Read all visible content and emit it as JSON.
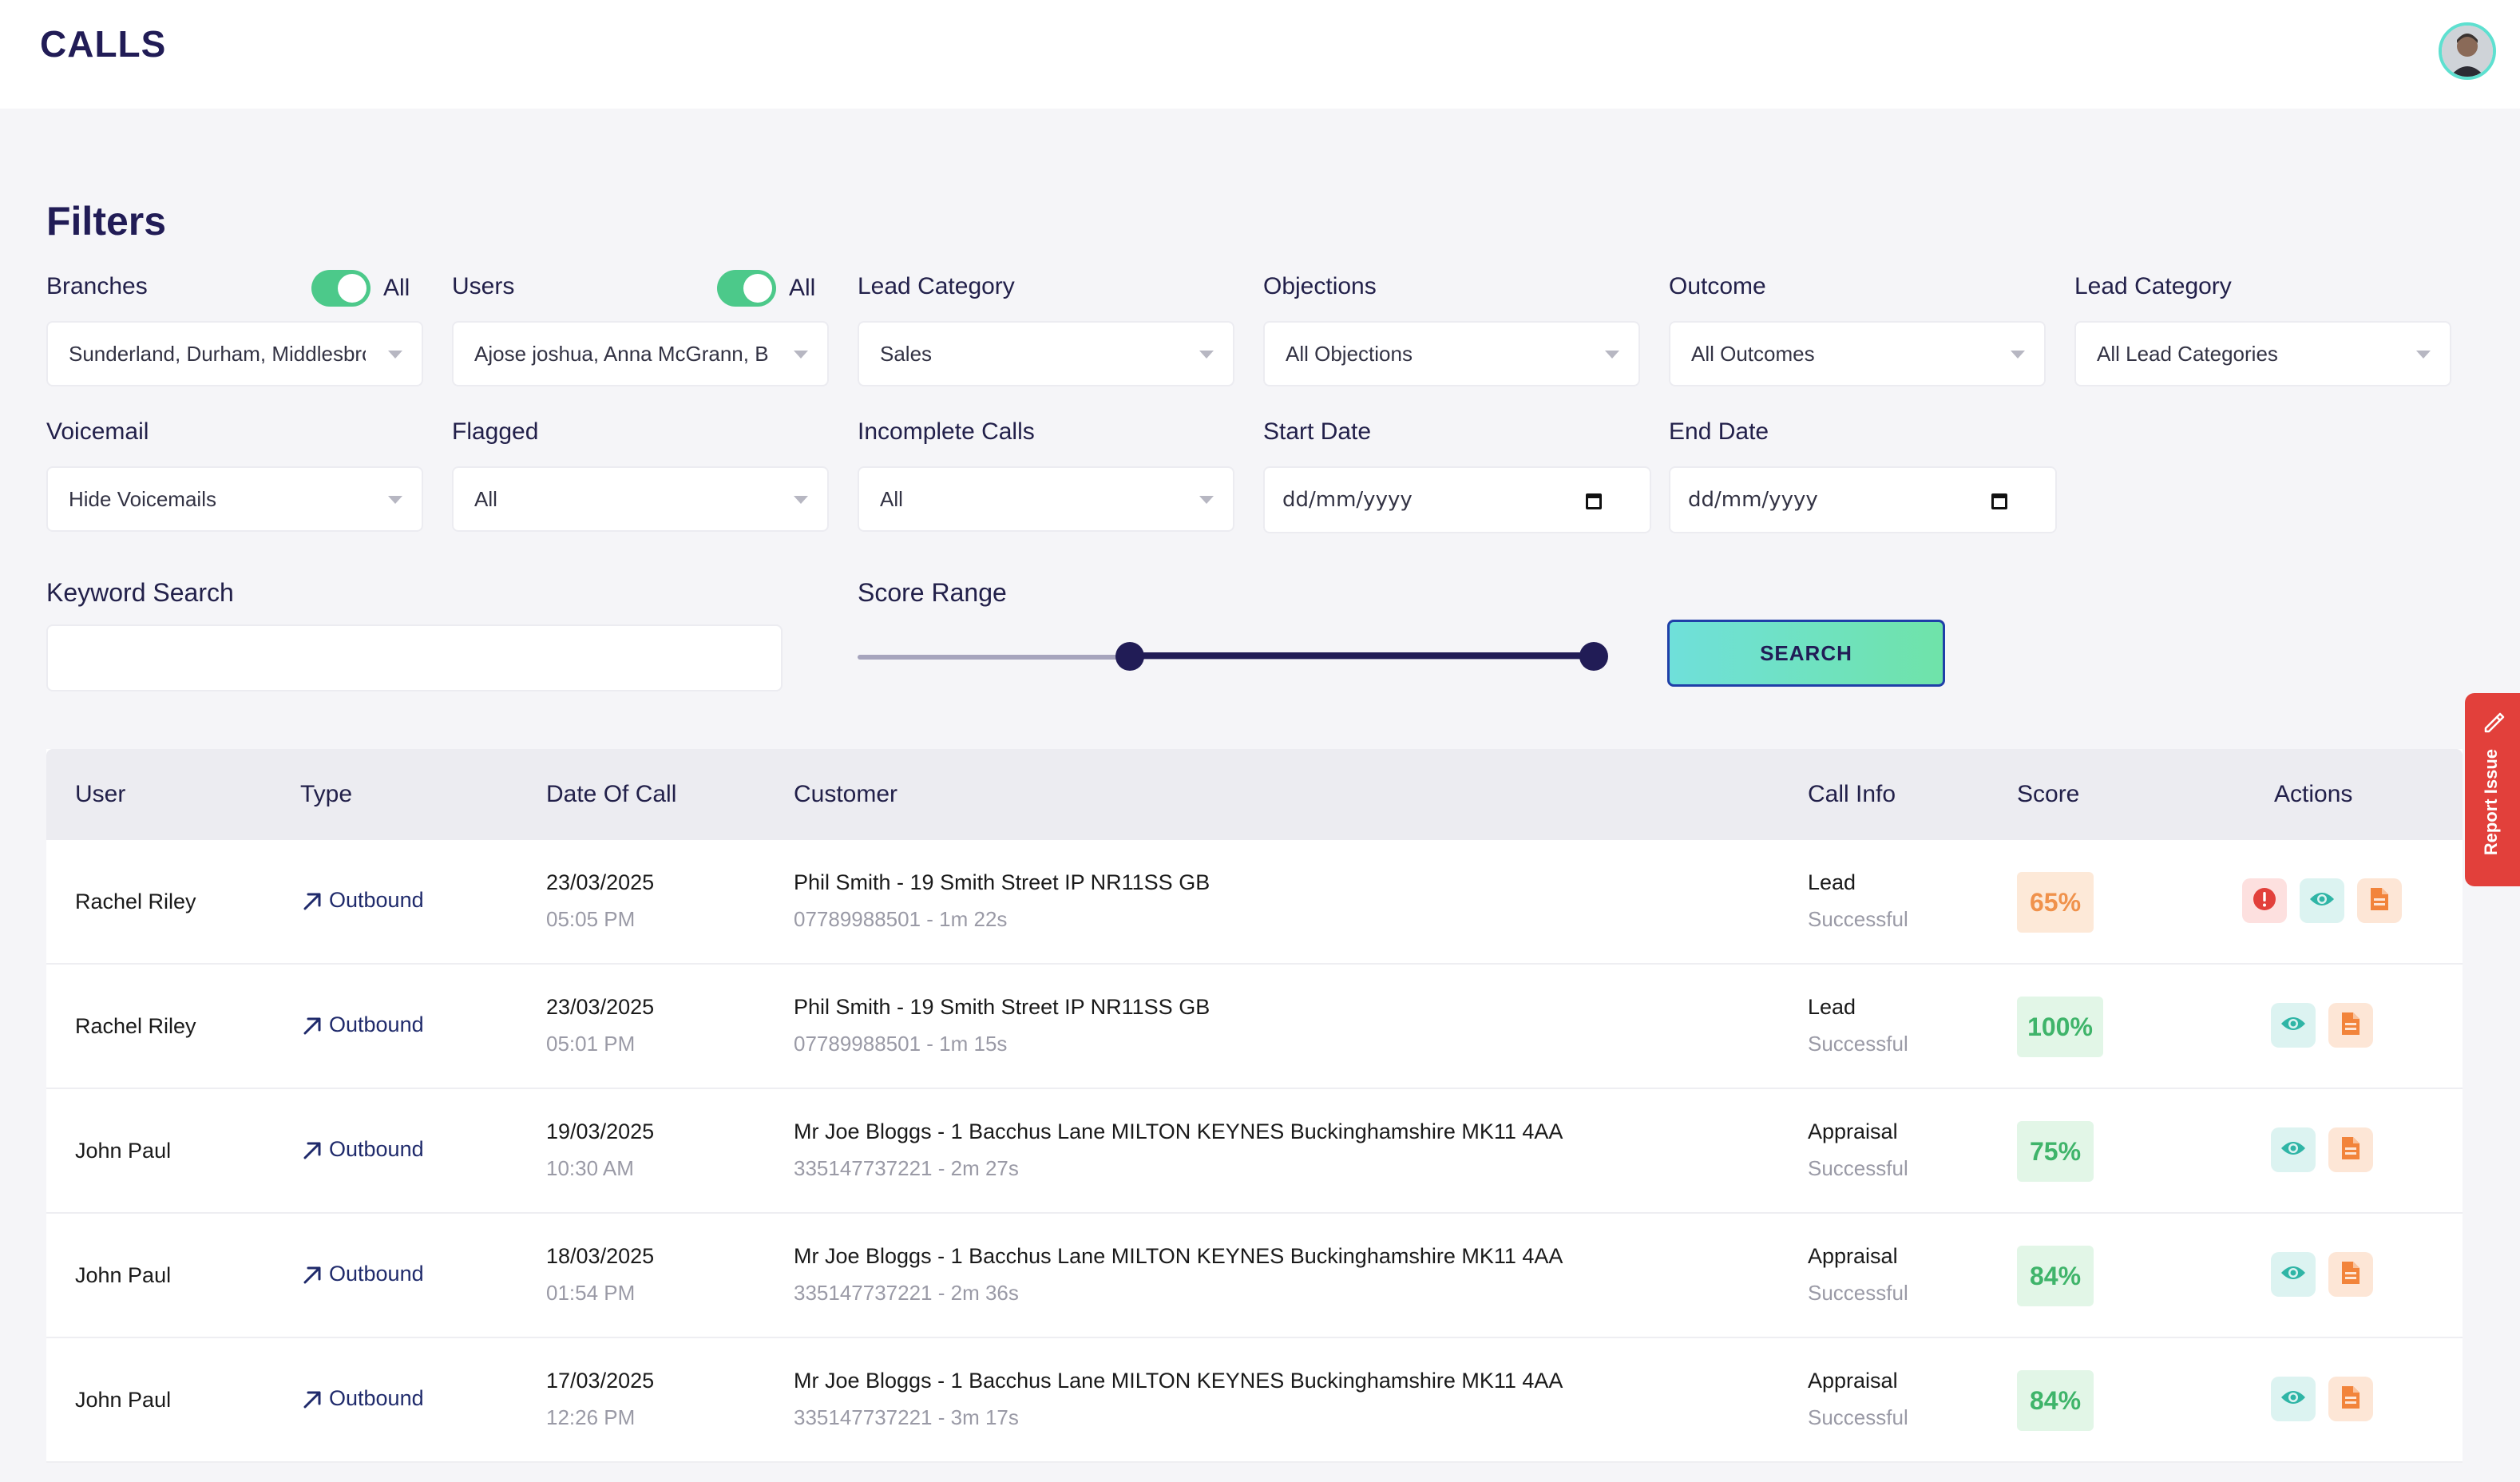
{
  "header": {
    "title": "CALLS"
  },
  "filters": {
    "title": "Filters",
    "branches": {
      "label": "Branches",
      "toggle_label": "All",
      "value": "Sunderland, Durham, Middlesbrough"
    },
    "users": {
      "label": "Users",
      "toggle_label": "All",
      "value": "Ajose joshua, Anna McGrann, B"
    },
    "lead_category_1": {
      "label": "Lead Category",
      "value": "Sales"
    },
    "objections": {
      "label": "Objections",
      "value": "All Objections"
    },
    "outcome": {
      "label": "Outcome",
      "value": "All Outcomes"
    },
    "lead_category_2": {
      "label": "Lead Category",
      "value": "All Lead Categories"
    },
    "voicemail": {
      "label": "Voicemail",
      "value": "Hide Voicemails"
    },
    "flagged": {
      "label": "Flagged",
      "value": "All"
    },
    "incomplete_calls": {
      "label": "Incomplete Calls",
      "value": "All"
    },
    "start_date": {
      "label": "Start Date",
      "placeholder": "dd/mm/yyyy"
    },
    "end_date": {
      "label": "End Date",
      "placeholder": "dd/mm/yyyy"
    },
    "keyword_search": {
      "label": "Keyword Search",
      "value": ""
    },
    "score_range": {
      "label": "Score Range",
      "min_fraction": 0.37,
      "max_fraction": 1.0
    },
    "search_button": "SEARCH"
  },
  "report_issue": "Report Issue",
  "table": {
    "headers": {
      "user": "User",
      "type": "Type",
      "date": "Date Of Call",
      "customer": "Customer",
      "call_info": "Call Info",
      "score": "Score",
      "actions": "Actions"
    },
    "rows": [
      {
        "user": "Rachel Riley",
        "type": "Outbound",
        "date": "23/03/2025",
        "time": "05:05 PM",
        "customer": "Phil Smith - 19 Smith Street IP NR11SS GB",
        "customer_sub": "07789988501 - 1m 22s",
        "call_info": "Lead",
        "call_status": "Successful",
        "score": "65%",
        "score_color": "#f0924c",
        "score_bg": "#fde9d8",
        "flagged": true
      },
      {
        "user": "Rachel Riley",
        "type": "Outbound",
        "date": "23/03/2025",
        "time": "05:01 PM",
        "customer": "Phil Smith - 19 Smith Street IP NR11SS GB",
        "customer_sub": "07789988501 - 1m 15s",
        "call_info": "Lead",
        "call_status": "Successful",
        "score": "100%",
        "score_color": "#3fb46a",
        "score_bg": "#e2f6e7",
        "flagged": false
      },
      {
        "user": "John Paul",
        "type": "Outbound",
        "date": "19/03/2025",
        "time": "10:30 AM",
        "customer": "Mr Joe Bloggs - 1 Bacchus Lane MILTON KEYNES Buckinghamshire MK11 4AA",
        "customer_sub": "335147737221 - 2m 27s",
        "call_info": "Appraisal",
        "call_status": "Successful",
        "score": "75%",
        "score_color": "#3fb46a",
        "score_bg": "#e2f6e7",
        "flagged": false
      },
      {
        "user": "John Paul",
        "type": "Outbound",
        "date": "18/03/2025",
        "time": "01:54 PM",
        "customer": "Mr Joe Bloggs - 1 Bacchus Lane MILTON KEYNES Buckinghamshire MK11 4AA",
        "customer_sub": "335147737221 - 2m 36s",
        "call_info": "Appraisal",
        "call_status": "Successful",
        "score": "84%",
        "score_color": "#3fb46a",
        "score_bg": "#e2f6e7",
        "flagged": false
      },
      {
        "user": "John Paul",
        "type": "Outbound",
        "date": "17/03/2025",
        "time": "12:26 PM",
        "customer": "Mr Joe Bloggs - 1 Bacchus Lane MILTON KEYNES Buckinghamshire MK11 4AA",
        "customer_sub": "335147737221 - 3m 17s",
        "call_info": "Appraisal",
        "call_status": "Successful",
        "score": "84%",
        "score_color": "#3fb46a",
        "score_bg": "#e2f6e7",
        "flagged": false
      }
    ]
  }
}
